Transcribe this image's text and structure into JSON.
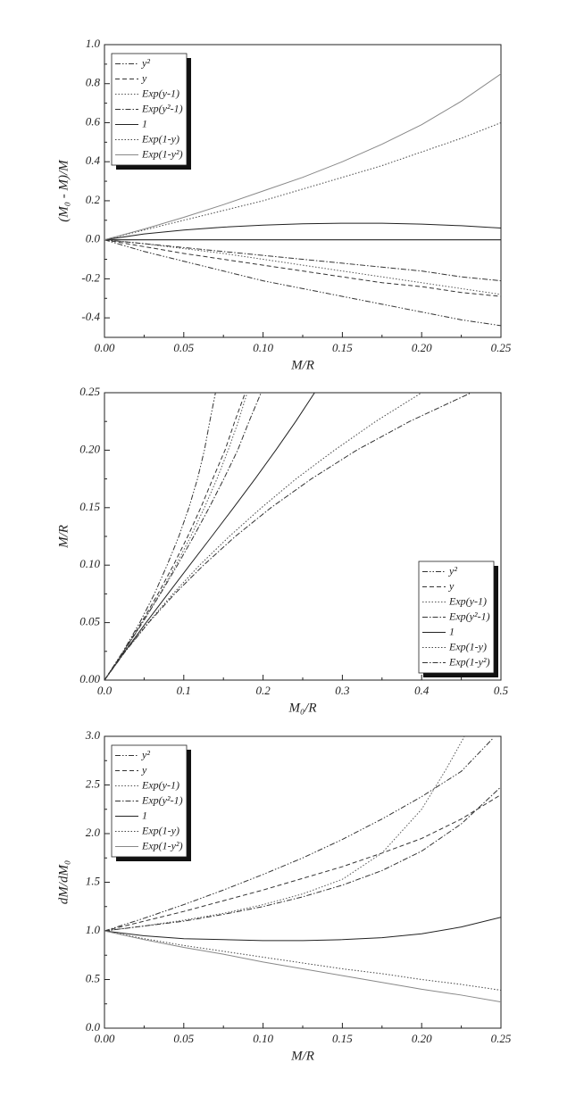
{
  "chart_data": [
    {
      "type": "line",
      "xlabel": "M/R",
      "ylabel": "(M₀ - M)/M",
      "legend": "upper left",
      "xlim": [
        0,
        0.25
      ],
      "ylim": [
        -0.5,
        1.0
      ],
      "xticks": [
        {
          "value": 0,
          "label": "0.00"
        },
        0.05,
        {
          "value": 0.1,
          "label": "0.10"
        },
        0.15,
        {
          "value": 0.2,
          "label": "0.20"
        },
        0.25
      ],
      "yticks": [
        -0.4,
        -0.2,
        {
          "value": 0,
          "label": "0.0"
        },
        0.2,
        0.4,
        0.6,
        0.8,
        {
          "value": 1,
          "label": "1.0"
        }
      ],
      "x": [
        0,
        0.025,
        0.05,
        0.075,
        0.1,
        0.125,
        0.15,
        0.175,
        0.2,
        0.225,
        0.25
      ],
      "series": [
        {
          "name": "y²",
          "color": "#333333",
          "linestyle": "dash-dot-dot",
          "values": [
            0,
            -0.06,
            -0.11,
            -0.16,
            -0.21,
            -0.25,
            -0.29,
            -0.33,
            -0.37,
            -0.41,
            -0.44
          ]
        },
        {
          "name": "y",
          "color": "#333333",
          "linestyle": "dash",
          "values": [
            0,
            -0.035,
            -0.07,
            -0.1,
            -0.13,
            -0.16,
            -0.19,
            -0.22,
            -0.24,
            -0.27,
            -0.29
          ]
        },
        {
          "name": "Exp(y-1)",
          "color": "#555555",
          "linestyle": "dot",
          "values": [
            0,
            -0.02,
            -0.045,
            -0.07,
            -0.1,
            -0.13,
            -0.16,
            -0.19,
            -0.22,
            -0.25,
            -0.28
          ]
        },
        {
          "name": "Exp(y²-1)",
          "color": "#333333",
          "linestyle": "dash-dot",
          "values": [
            0,
            -0.02,
            -0.04,
            -0.06,
            -0.08,
            -0.1,
            -0.12,
            -0.14,
            -0.16,
            -0.19,
            -0.21
          ]
        },
        {
          "name": "1",
          "color": "#222222",
          "linestyle": "solid",
          "values": [
            0,
            0.03,
            0.05,
            0.065,
            0.075,
            0.082,
            0.085,
            0.085,
            0.08,
            0.072,
            0.06
          ]
        },
        {
          "name": "Exp(1-y)",
          "color": "#444444",
          "linestyle": "dot",
          "values": [
            0,
            0.05,
            0.1,
            0.15,
            0.2,
            0.26,
            0.32,
            0.38,
            0.45,
            0.52,
            0.6
          ]
        },
        {
          "name": "Exp(1-y²)",
          "color": "#888888",
          "linestyle": "solid",
          "values": [
            0,
            0.055,
            0.115,
            0.18,
            0.25,
            0.32,
            0.4,
            0.49,
            0.59,
            0.71,
            0.85
          ]
        }
      ]
    },
    {
      "type": "line",
      "xlabel": "M₀/R",
      "ylabel": "M/R",
      "legend": "lower right",
      "xlim": [
        0,
        0.5
      ],
      "ylim": [
        0,
        0.25
      ],
      "xticks": [
        {
          "value": 0,
          "label": "0.0"
        },
        0.1,
        0.2,
        0.3,
        0.4,
        0.5
      ],
      "yticks": [
        {
          "value": 0,
          "label": "0.00"
        },
        0.05,
        {
          "value": 0.1,
          "label": "0.10"
        },
        0.15,
        {
          "value": 0.2,
          "label": "0.20"
        },
        0.25
      ],
      "series": [
        {
          "name": "y²",
          "color": "#333333",
          "linestyle": "dash-dot-dot",
          "x": [
            0,
            0.0235,
            0.0445,
            0.063,
            0.079,
            0.0938,
            0.1065,
            0.1173,
            0.126,
            0.1328,
            0.14
          ],
          "values": [
            0,
            0.025,
            0.05,
            0.075,
            0.1,
            0.125,
            0.15,
            0.175,
            0.2,
            0.225,
            0.25
          ]
        },
        {
          "name": "y",
          "color": "#333333",
          "linestyle": "dash",
          "x": [
            0,
            0.0241,
            0.0465,
            0.0675,
            0.087,
            0.105,
            0.1215,
            0.1365,
            0.152,
            0.1643,
            0.1775
          ],
          "values": [
            0,
            0.025,
            0.05,
            0.075,
            0.1,
            0.125,
            0.15,
            0.175,
            0.2,
            0.225,
            0.25
          ]
        },
        {
          "name": "Exp(y-1)",
          "color": "#555555",
          "linestyle": "dot",
          "x": [
            0,
            0.0245,
            0.0478,
            0.0698,
            0.09,
            0.1088,
            0.126,
            0.1418,
            0.156,
            0.1688,
            0.18
          ],
          "values": [
            0,
            0.025,
            0.05,
            0.075,
            0.1,
            0.125,
            0.15,
            0.175,
            0.2,
            0.225,
            0.25
          ]
        },
        {
          "name": "Exp(y²-1)",
          "color": "#333333",
          "linestyle": "dash-dot",
          "x": [
            0,
            0.0245,
            0.048,
            0.0705,
            0.092,
            0.1125,
            0.132,
            0.1505,
            0.168,
            0.1823,
            0.1975
          ],
          "values": [
            0,
            0.025,
            0.05,
            0.075,
            0.1,
            0.125,
            0.15,
            0.175,
            0.2,
            0.225,
            0.25
          ]
        },
        {
          "name": "1",
          "color": "#222222",
          "linestyle": "solid",
          "x": [
            0,
            0.0258,
            0.0525,
            0.0799,
            0.1075,
            0.1353,
            0.1628,
            0.1899,
            0.216,
            0.2412,
            0.265
          ],
          "values": [
            0,
            0.025,
            0.05,
            0.075,
            0.1,
            0.125,
            0.15,
            0.175,
            0.2,
            0.225,
            0.25
          ]
        },
        {
          "name": "Exp(1-y)",
          "color": "#444444",
          "linestyle": "dot",
          "x": [
            0,
            0.0263,
            0.055,
            0.0863,
            0.12,
            0.1575,
            0.198,
            0.2415,
            0.29,
            0.342,
            0.4
          ],
          "values": [
            0,
            0.025,
            0.05,
            0.075,
            0.1,
            0.125,
            0.15,
            0.175,
            0.2,
            0.225,
            0.25
          ]
        },
        {
          "name": "Exp(1-y²)",
          "color": "#333333",
          "linestyle": "dash-dot",
          "x": [
            0,
            0.0264,
            0.0558,
            0.0885,
            0.125,
            0.165,
            0.21,
            0.2608,
            0.318,
            0.3848,
            0.4625
          ],
          "values": [
            0,
            0.025,
            0.05,
            0.075,
            0.1,
            0.125,
            0.15,
            0.175,
            0.2,
            0.225,
            0.25
          ]
        }
      ]
    },
    {
      "type": "line",
      "xlabel": "M/R",
      "ylabel": "dM/dM₀",
      "legend": "upper left",
      "xlim": [
        0,
        0.25
      ],
      "ylim": [
        0,
        3.0
      ],
      "xticks": [
        {
          "value": 0,
          "label": "0.00"
        },
        0.05,
        {
          "value": 0.1,
          "label": "0.10"
        },
        0.15,
        {
          "value": 0.2,
          "label": "0.20"
        },
        0.25
      ],
      "yticks": [
        {
          "value": 0,
          "label": "0.0"
        },
        0.5,
        {
          "value": 1,
          "label": "1.0"
        },
        1.5,
        {
          "value": 2,
          "label": "2.0"
        },
        2.5,
        {
          "value": 3,
          "label": "3.0"
        }
      ],
      "series": [
        {
          "name": "y²",
          "color": "#333333",
          "linestyle": "dash-dot-dot",
          "x": [
            0,
            0.025,
            0.05,
            0.075,
            0.1,
            0.125,
            0.15,
            0.175,
            0.2,
            0.225,
            0.245
          ],
          "values": [
            1.0,
            1.13,
            1.27,
            1.42,
            1.58,
            1.75,
            1.94,
            2.15,
            2.38,
            2.64,
            2.98
          ]
        },
        {
          "name": "y",
          "color": "#333333",
          "linestyle": "dash",
          "x": [
            0,
            0.025,
            0.05,
            0.075,
            0.1,
            0.125,
            0.15,
            0.175,
            0.2,
            0.225,
            0.25
          ],
          "values": [
            1.0,
            1.1,
            1.2,
            1.31,
            1.42,
            1.54,
            1.66,
            1.8,
            1.95,
            2.15,
            2.4
          ]
        },
        {
          "name": "Exp(y-1)",
          "color": "#555555",
          "linestyle": "dot",
          "x": [
            0,
            0.025,
            0.05,
            0.075,
            0.1,
            0.125,
            0.15,
            0.175,
            0.2,
            0.215,
            0.227
          ],
          "values": [
            1.0,
            1.05,
            1.11,
            1.18,
            1.27,
            1.38,
            1.53,
            1.8,
            2.25,
            2.65,
            3.0
          ]
        },
        {
          "name": "Exp(y²-1)",
          "color": "#333333",
          "linestyle": "dash-dot",
          "x": [
            0,
            0.025,
            0.05,
            0.075,
            0.1,
            0.125,
            0.15,
            0.175,
            0.2,
            0.225,
            0.25
          ],
          "values": [
            1.0,
            1.05,
            1.1,
            1.17,
            1.25,
            1.35,
            1.47,
            1.62,
            1.82,
            2.1,
            2.48
          ]
        },
        {
          "name": "1",
          "color": "#222222",
          "linestyle": "solid",
          "x": [
            0,
            0.025,
            0.05,
            0.075,
            0.1,
            0.125,
            0.15,
            0.175,
            0.2,
            0.225,
            0.25
          ],
          "values": [
            1.0,
            0.95,
            0.92,
            0.91,
            0.9,
            0.9,
            0.91,
            0.93,
            0.97,
            1.04,
            1.14
          ]
        },
        {
          "name": "Exp(1-y)",
          "color": "#444444",
          "linestyle": "dot",
          "x": [
            0,
            0.025,
            0.05,
            0.075,
            0.1,
            0.125,
            0.15,
            0.175,
            0.2,
            0.225,
            0.25
          ],
          "values": [
            1.0,
            0.92,
            0.85,
            0.79,
            0.73,
            0.67,
            0.61,
            0.56,
            0.5,
            0.45,
            0.39
          ]
        },
        {
          "name": "Exp(1-y²)",
          "color": "#888888",
          "linestyle": "solid",
          "x": [
            0,
            0.025,
            0.05,
            0.075,
            0.1,
            0.125,
            0.15,
            0.175,
            0.2,
            0.225,
            0.25
          ],
          "values": [
            1.0,
            0.91,
            0.83,
            0.76,
            0.68,
            0.61,
            0.54,
            0.47,
            0.4,
            0.34,
            0.27
          ]
        }
      ]
    }
  ]
}
